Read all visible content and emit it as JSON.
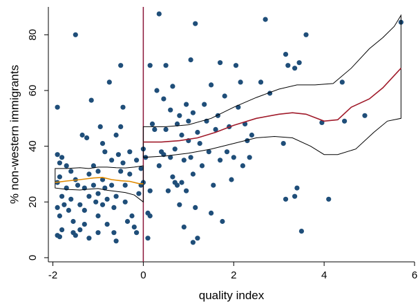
{
  "chart_data": {
    "type": "scatter",
    "title": "",
    "xlabel": "quality index",
    "ylabel": "% non-western immigrants",
    "xlim": [
      -2.1,
      6.0
    ],
    "ylim": [
      -1.5,
      90
    ],
    "xticks": [
      -2,
      0,
      2,
      4,
      6
    ],
    "yticks": [
      0,
      20,
      40,
      60,
      80
    ],
    "grid": false,
    "legend": "none",
    "cutoff_x": 0,
    "colors": {
      "points": "#1f4e79",
      "fit_left": "#e08a00",
      "fit_right": "#a01a2a",
      "ci": "#000000",
      "cutoff": "#8b1538"
    },
    "points": [
      [
        -1.9,
        54
      ],
      [
        -1.9,
        37
      ],
      [
        -1.85,
        34
      ],
      [
        -1.8,
        36
      ],
      [
        -1.9,
        27
      ],
      [
        -1.85,
        29
      ],
      [
        -1.8,
        22
      ],
      [
        -1.9,
        18
      ],
      [
        -1.85,
        15
      ],
      [
        -1.8,
        10
      ],
      [
        -1.9,
        8
      ],
      [
        -1.85,
        7.5
      ],
      [
        -1.75,
        19
      ],
      [
        -1.7,
        33
      ],
      [
        -1.7,
        25
      ],
      [
        -1.65,
        17
      ],
      [
        -1.6,
        31
      ],
      [
        -1.6,
        21
      ],
      [
        -1.55,
        13
      ],
      [
        -1.5,
        80
      ],
      [
        -1.5,
        28
      ],
      [
        -1.5,
        8
      ],
      [
        -1.45,
        26
      ],
      [
        -1.4,
        19
      ],
      [
        -1.4,
        10
      ],
      [
        -1.35,
        44
      ],
      [
        -1.3,
        25
      ],
      [
        -1.3,
        17
      ],
      [
        -1.3,
        12
      ],
      [
        -1.25,
        43
      ],
      [
        -1.2,
        30
      ],
      [
        -1.2,
        22
      ],
      [
        -1.2,
        7
      ],
      [
        -1.15,
        56.5
      ],
      [
        -1.1,
        33
      ],
      [
        -1.1,
        26
      ],
      [
        -1.05,
        20
      ],
      [
        -1.0,
        31
      ],
      [
        -1.0,
        15
      ],
      [
        -1.0,
        9
      ],
      [
        -0.95,
        47
      ],
      [
        -0.9,
        41
      ],
      [
        -0.9,
        28
      ],
      [
        -0.9,
        19
      ],
      [
        -0.85,
        38
      ],
      [
        -0.85,
        25
      ],
      [
        -0.8,
        21
      ],
      [
        -0.8,
        12
      ],
      [
        -0.75,
        63
      ],
      [
        -0.7,
        35
      ],
      [
        -0.7,
        26
      ],
      [
        -0.65,
        18
      ],
      [
        -0.65,
        9
      ],
      [
        -0.6,
        44
      ],
      [
        -0.6,
        22
      ],
      [
        -0.55,
        37
      ],
      [
        -0.5,
        69
      ],
      [
        -0.5,
        47
      ],
      [
        -0.5,
        31
      ],
      [
        -0.45,
        54
      ],
      [
        -0.45,
        34
      ],
      [
        -0.4,
        26
      ],
      [
        -0.4,
        20
      ],
      [
        -0.35,
        13
      ],
      [
        -0.3,
        30
      ],
      [
        -0.25,
        15
      ],
      [
        -0.2,
        11
      ],
      [
        -0.15,
        35
      ],
      [
        -0.1,
        23
      ],
      [
        -0.05,
        26
      ],
      [
        -0.05,
        32
      ],
      [
        -0.15,
        9
      ],
      [
        -0.6,
        6
      ],
      [
        -1.55,
        9
      ],
      [
        -0.3,
        38
      ],
      [
        0.0,
        39
      ],
      [
        0.0,
        27
      ],
      [
        0.05,
        36
      ],
      [
        0.1,
        16
      ],
      [
        0.1,
        7
      ],
      [
        0.15,
        15
      ],
      [
        0.15,
        69
      ],
      [
        0.2,
        48
      ],
      [
        0.25,
        46
      ],
      [
        0.3,
        60
      ],
      [
        0.35,
        87.5
      ],
      [
        0.35,
        33
      ],
      [
        0.4,
        38
      ],
      [
        0.45,
        57
      ],
      [
        0.45,
        37
      ],
      [
        0.5,
        69
      ],
      [
        0.5,
        46
      ],
      [
        0.55,
        24
      ],
      [
        0.6,
        53
      ],
      [
        0.6,
        36
      ],
      [
        0.65,
        61.5
      ],
      [
        0.65,
        29
      ],
      [
        0.7,
        39
      ],
      [
        0.7,
        27
      ],
      [
        0.75,
        48
      ],
      [
        0.75,
        26
      ],
      [
        0.8,
        51
      ],
      [
        0.8,
        19
      ],
      [
        0.85,
        44
      ],
      [
        0.85,
        27
      ],
      [
        0.9,
        11
      ],
      [
        0.9,
        35
      ],
      [
        0.95,
        55
      ],
      [
        0.95,
        24
      ],
      [
        1.0,
        49
      ],
      [
        1.0,
        42
      ],
      [
        1.05,
        71
      ],
      [
        1.05,
        36
      ],
      [
        1.1,
        52
      ],
      [
        1.1,
        30
      ],
      [
        1.15,
        84
      ],
      [
        1.15,
        18
      ],
      [
        1.2,
        45
      ],
      [
        1.2,
        7
      ],
      [
        1.25,
        41
      ],
      [
        1.3,
        33
      ],
      [
        1.35,
        55
      ],
      [
        1.4,
        49
      ],
      [
        1.45,
        38
      ],
      [
        1.5,
        62
      ],
      [
        1.5,
        16
      ],
      [
        1.55,
        26
      ],
      [
        1.6,
        46
      ],
      [
        1.65,
        51
      ],
      [
        1.7,
        70
      ],
      [
        1.7,
        35
      ],
      [
        1.75,
        13
      ],
      [
        1.8,
        58
      ],
      [
        1.85,
        38
      ],
      [
        1.9,
        47
      ],
      [
        1.95,
        28
      ],
      [
        2.0,
        36
      ],
      [
        2.05,
        69
      ],
      [
        2.1,
        54
      ],
      [
        2.15,
        63
      ],
      [
        2.2,
        33
      ],
      [
        2.25,
        48
      ],
      [
        2.3,
        42
      ],
      [
        2.35,
        36
      ],
      [
        2.4,
        44
      ],
      [
        2.6,
        63
      ],
      [
        2.7,
        85.5
      ],
      [
        2.8,
        59
      ],
      [
        3.1,
        41
      ],
      [
        3.15,
        73
      ],
      [
        3.15,
        21
      ],
      [
        3.2,
        69
      ],
      [
        3.35,
        22
      ],
      [
        3.35,
        68
      ],
      [
        3.4,
        25
      ],
      [
        3.45,
        70
      ],
      [
        3.5,
        9.5
      ],
      [
        3.6,
        80
      ],
      [
        3.95,
        48.5
      ],
      [
        4.1,
        21
      ],
      [
        4.4,
        63
      ],
      [
        4.45,
        49
      ],
      [
        4.9,
        51
      ],
      [
        5.7,
        84.5
      ],
      [
        1.1,
        5.5
      ],
      [
        0.15,
        24
      ],
      [
        -1.0,
        23
      ]
    ],
    "fit_left": [
      [
        -1.95,
        27
      ],
      [
        -1.7,
        27.5
      ],
      [
        -1.4,
        28
      ],
      [
        -1.1,
        28.6
      ],
      [
        -0.9,
        28.8
      ],
      [
        -0.7,
        28
      ],
      [
        -0.5,
        27.6
      ],
      [
        -0.3,
        27.4
      ],
      [
        -0.1,
        26.6
      ],
      [
        0,
        26.5
      ]
    ],
    "ci_left_upper": [
      [
        -1.95,
        32
      ],
      [
        -1.7,
        32
      ],
      [
        -1.4,
        32.3
      ],
      [
        -1.2,
        32
      ],
      [
        -1.0,
        32.5
      ],
      [
        -0.8,
        32.5
      ],
      [
        -0.6,
        32.3
      ],
      [
        -0.4,
        32.2
      ],
      [
        -0.2,
        32.5
      ],
      [
        0,
        33
      ]
    ],
    "ci_left_lower": [
      [
        -1.95,
        25
      ],
      [
        -1.7,
        24.5
      ],
      [
        -1.4,
        24.3
      ],
      [
        -1.2,
        24.6
      ],
      [
        -1.0,
        24.8
      ],
      [
        -0.8,
        24.2
      ],
      [
        -0.6,
        23.8
      ],
      [
        -0.4,
        23.4
      ],
      [
        -0.2,
        22.5
      ],
      [
        0,
        20
      ]
    ],
    "fit_right": [
      [
        0,
        41.5
      ],
      [
        0.4,
        41.5
      ],
      [
        0.8,
        42
      ],
      [
        1.2,
        43
      ],
      [
        1.6,
        45
      ],
      [
        2.0,
        47.5
      ],
      [
        2.5,
        50
      ],
      [
        3.0,
        51.5
      ],
      [
        3.3,
        52
      ],
      [
        3.6,
        51.5
      ],
      [
        4.0,
        49
      ],
      [
        4.3,
        49.5
      ],
      [
        4.6,
        54
      ],
      [
        5.0,
        57
      ],
      [
        5.3,
        61
      ],
      [
        5.7,
        68
      ]
    ],
    "ci_right_upper": [
      [
        0,
        47
      ],
      [
        0.5,
        47
      ],
      [
        1.0,
        47.7
      ],
      [
        1.5,
        50
      ],
      [
        2.0,
        54
      ],
      [
        2.5,
        57.5
      ],
      [
        3.0,
        60.5
      ],
      [
        3.4,
        62
      ],
      [
        3.8,
        62
      ],
      [
        4.2,
        62.5
      ],
      [
        4.6,
        68
      ],
      [
        5.0,
        75
      ],
      [
        5.3,
        79
      ],
      [
        5.55,
        83
      ],
      [
        5.7,
        87
      ]
    ],
    "ci_right_lower": [
      [
        0,
        36
      ],
      [
        0.5,
        36.5
      ],
      [
        1.0,
        37.5
      ],
      [
        1.5,
        39
      ],
      [
        2.0,
        41
      ],
      [
        2.5,
        43
      ],
      [
        2.9,
        43.5
      ],
      [
        3.3,
        43
      ],
      [
        3.7,
        40
      ],
      [
        4.0,
        37
      ],
      [
        4.3,
        37
      ],
      [
        4.7,
        39
      ],
      [
        5.1,
        45
      ],
      [
        5.4,
        49
      ],
      [
        5.7,
        50
      ]
    ]
  }
}
